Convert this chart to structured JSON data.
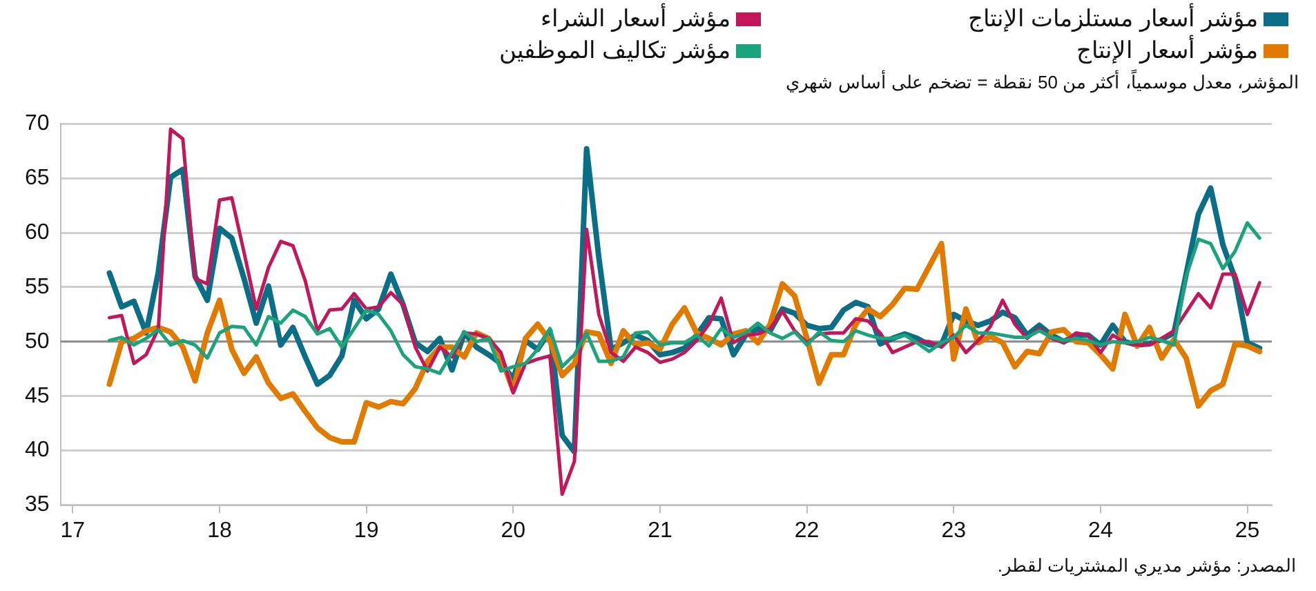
{
  "chart_data": {
    "type": "line",
    "subtitle": "المؤشر، معدل موسمياً، أكثر من 50 نقطة = تضخم على أساس شهري",
    "annotations": [
      "المصدر: مؤشر مديري المشتريات لقطر."
    ],
    "x": [
      "2017-04",
      "2017-05",
      "2017-06",
      "2017-07",
      "2017-08",
      "2017-09",
      "2017-10",
      "2017-11",
      "2017-12",
      "2018-01",
      "2018-02",
      "2018-03",
      "2018-04",
      "2018-05",
      "2018-06",
      "2018-07",
      "2018-08",
      "2018-09",
      "2018-10",
      "2018-11",
      "2018-12",
      "2019-01",
      "2019-02",
      "2019-03",
      "2019-04",
      "2019-05",
      "2019-06",
      "2019-07",
      "2019-08",
      "2019-09",
      "2019-10",
      "2019-11",
      "2019-12",
      "2020-01",
      "2020-02",
      "2020-03",
      "2020-04",
      "2020-05",
      "2020-06",
      "2020-07",
      "2020-08",
      "2020-09",
      "2020-10",
      "2020-11",
      "2020-12",
      "2021-01",
      "2021-02",
      "2021-03",
      "2021-04",
      "2021-05",
      "2021-06",
      "2021-07",
      "2021-08",
      "2021-09",
      "2021-10",
      "2021-11",
      "2021-12",
      "2022-01",
      "2022-02",
      "2022-03",
      "2022-04",
      "2022-05",
      "2022-06",
      "2022-07",
      "2022-08",
      "2022-09",
      "2022-10",
      "2022-11",
      "2022-12",
      "2023-01",
      "2023-02",
      "2023-03",
      "2023-04",
      "2023-05",
      "2023-06",
      "2023-07",
      "2023-08",
      "2023-09",
      "2023-10",
      "2023-11",
      "2023-12",
      "2024-01",
      "2024-02",
      "2024-03",
      "2024-04",
      "2024-05",
      "2024-06",
      "2024-07",
      "2024-08",
      "2024-09",
      "2024-10",
      "2024-11",
      "2024-12",
      "2025-01",
      "2025-02"
    ],
    "series": [
      {
        "name": "مؤشر أسعار مستلزمات الإنتاج",
        "color": "#0b6e87",
        "values": [
          56.3,
          53.2,
          53.7,
          50.8,
          56.4,
          65.1,
          65.8,
          56.0,
          53.8,
          60.4,
          59.5,
          55.8,
          51.7,
          55.1,
          49.7,
          51.3,
          48.6,
          46.1,
          46.9,
          48.7,
          53.8,
          52.1,
          53.0,
          56.2,
          53.4,
          49.9,
          49.1,
          50.3,
          47.4,
          50.8,
          49.5,
          48.8,
          48.0,
          46.6,
          50.1,
          49.3,
          51.0,
          41.4,
          39.9,
          67.7,
          57.7,
          49.3,
          49.9,
          50.6,
          50.1,
          48.8,
          49.0,
          49.4,
          50.6,
          52.2,
          52.1,
          48.8,
          50.6,
          51.2,
          51.0,
          53.0,
          52.6,
          51.5,
          51.2,
          51.3,
          52.9,
          53.6,
          53.2,
          49.8,
          50.3,
          50.7,
          50.3,
          49.7,
          49.7,
          52.5,
          51.9,
          51.5,
          51.9,
          52.7,
          52.2,
          50.6,
          51.5,
          50.6,
          50.0,
          50.6,
          50.6,
          49.7,
          51.5,
          50.0,
          49.7,
          49.8,
          50.2,
          50.8,
          56.2,
          61.7,
          64.1,
          58.9,
          55.8,
          49.9,
          49.4
        ]
      },
      {
        "name": "مؤشر أسعار الإنتاج",
        "color": "#e07b00",
        "values": [
          46.1,
          50.0,
          50.3,
          51.0,
          51.3,
          50.9,
          49.5,
          46.4,
          50.8,
          53.8,
          49.3,
          47.1,
          48.6,
          46.2,
          44.8,
          45.2,
          43.6,
          42.1,
          41.2,
          40.8,
          40.8,
          44.4,
          44.0,
          44.5,
          44.3,
          45.7,
          48.2,
          49.5,
          49.5,
          48.6,
          50.8,
          50.3,
          48.6,
          45.5,
          50.3,
          51.6,
          50.1,
          46.9,
          48.0,
          50.9,
          50.7,
          48.0,
          51.0,
          49.7,
          49.9,
          49.3,
          51.6,
          53.1,
          50.8,
          50.3,
          49.7,
          50.7,
          51.0,
          49.9,
          51.6,
          55.3,
          54.2,
          50.3,
          46.2,
          48.8,
          48.8,
          51.6,
          53.0,
          52.3,
          53.4,
          54.9,
          54.8,
          56.9,
          59.0,
          48.4,
          53.0,
          49.9,
          50.5,
          49.9,
          47.7,
          49.1,
          48.9,
          50.9,
          51.1,
          50.0,
          49.9,
          48.8,
          47.5,
          52.5,
          49.6,
          51.3,
          48.5,
          50.2,
          48.5,
          44.1,
          45.5,
          46.1,
          49.8,
          49.6,
          49.1
        ]
      },
      {
        "name": "مؤشر أسعار الشراء",
        "color": "#c2185b",
        "values": [
          52.2,
          52.4,
          48.0,
          48.8,
          51.2,
          69.5,
          68.6,
          55.8,
          55.3,
          63.0,
          63.2,
          58.2,
          53.0,
          56.8,
          59.2,
          58.8,
          55.6,
          51.0,
          52.9,
          53.0,
          54.4,
          53.0,
          53.2,
          54.5,
          53.4,
          49.5,
          47.3,
          49.5,
          48.6,
          50.8,
          50.7,
          50.3,
          49.0,
          45.3,
          48.0,
          48.4,
          48.7,
          36.0,
          39.0,
          60.3,
          52.5,
          49.0,
          48.2,
          49.5,
          49.0,
          48.1,
          48.4,
          49.0,
          50.1,
          51.6,
          54.0,
          49.9,
          50.6,
          50.7,
          51.2,
          52.8,
          51.0,
          49.9,
          50.7,
          50.8,
          50.8,
          52.1,
          51.9,
          50.8,
          49.0,
          49.5,
          50.0,
          50.0,
          49.5,
          50.6,
          49.0,
          50.1,
          51.4,
          53.8,
          51.6,
          50.3,
          51.2,
          50.3,
          49.9,
          50.8,
          50.6,
          49.0,
          50.6,
          49.9,
          49.7,
          49.7,
          50.3,
          51.0,
          52.7,
          54.4,
          53.1,
          56.2,
          56.2,
          52.5,
          55.4
        ]
      },
      {
        "name": "مؤشر تكاليف الموظفين",
        "color": "#1ba37b",
        "values": [
          50.1,
          50.4,
          49.7,
          50.3,
          51.1,
          49.7,
          50.1,
          49.7,
          48.5,
          50.8,
          51.4,
          51.3,
          49.7,
          52.3,
          51.7,
          52.9,
          52.3,
          50.7,
          51.2,
          49.5,
          51.2,
          52.9,
          52.5,
          51.0,
          48.8,
          47.7,
          47.5,
          47.1,
          49.0,
          50.9,
          50.0,
          50.3,
          47.3,
          47.7,
          48.0,
          49.3,
          51.2,
          47.7,
          48.8,
          50.8,
          48.2,
          48.2,
          48.6,
          50.8,
          50.9,
          49.7,
          49.9,
          49.9,
          50.6,
          49.6,
          51.2,
          50.4,
          50.8,
          51.7,
          50.8,
          50.3,
          50.9,
          49.7,
          50.9,
          50.1,
          50.0,
          51.0,
          50.6,
          50.3,
          50.3,
          50.6,
          49.9,
          49.1,
          49.9,
          50.4,
          51.5,
          50.8,
          50.8,
          50.6,
          50.4,
          50.4,
          51.0,
          50.4,
          50.1,
          50.3,
          50.1,
          49.7,
          50.0,
          49.9,
          50.0,
          50.4,
          50.1,
          49.7,
          56.0,
          59.4,
          59.0,
          56.7,
          58.3,
          60.9,
          59.5
        ]
      }
    ],
    "xlim": [
      "2016-12",
      "2025-03"
    ],
    "xticks": [
      {
        "value": "2017-01",
        "label": "17"
      },
      {
        "value": "2018-01",
        "label": "18"
      },
      {
        "value": "2019-01",
        "label": "19"
      },
      {
        "value": "2020-01",
        "label": "20"
      },
      {
        "value": "2021-01",
        "label": "21"
      },
      {
        "value": "2022-01",
        "label": "22"
      },
      {
        "value": "2023-01",
        "label": "23"
      },
      {
        "value": "2024-01",
        "label": "24"
      },
      {
        "value": "2025-01",
        "label": "25"
      }
    ],
    "ylim": [
      35,
      70
    ],
    "yticks": [
      35,
      40,
      45,
      50,
      55,
      60,
      65,
      70
    ],
    "ref_lines": [
      {
        "axis": "y",
        "value": 50,
        "color": "#8c8c8c"
      }
    ],
    "grid": "y",
    "legend": "top",
    "marker": "none",
    "line_style": "solid"
  }
}
